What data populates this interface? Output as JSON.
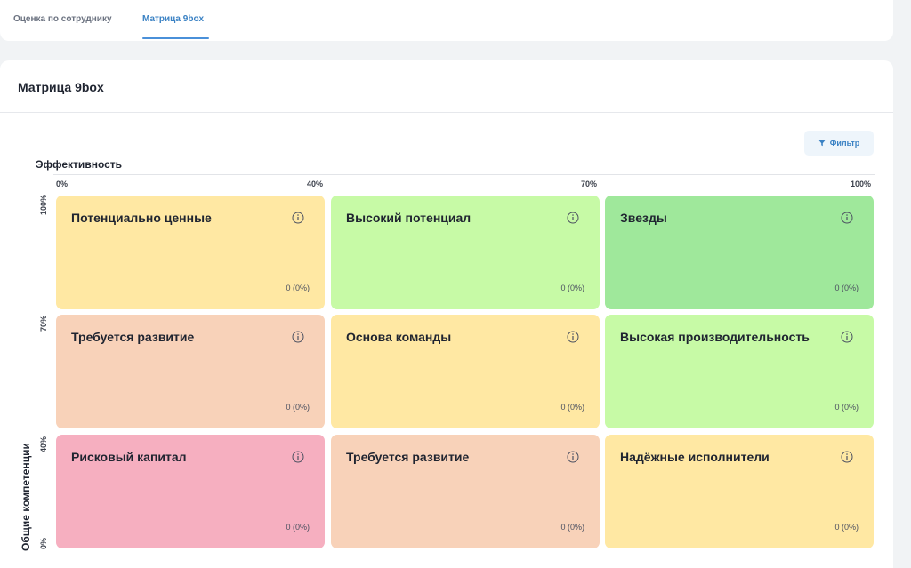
{
  "tabs": [
    {
      "label": "Оценка по сотруднику",
      "active": false
    },
    {
      "label": "Матрица 9box",
      "active": true
    }
  ],
  "page": {
    "title": "Матрица 9box"
  },
  "filter": {
    "label": "Фильтр",
    "icon": "filter-icon"
  },
  "axes": {
    "x_title": "Эффективность",
    "x_ticks": [
      "0%",
      "40%",
      "70%",
      "100%"
    ],
    "y_title": "Общие компетенции",
    "y_ticks": [
      "100%",
      "70%",
      "40%",
      "0%"
    ]
  },
  "grid": {
    "rows": [
      [
        {
          "title": "Потенциально ценные",
          "count": "0 (0%)",
          "color": "#ffe8a3"
        },
        {
          "title": "Высокий потенциал",
          "count": "0 (0%)",
          "color": "#c7faa6"
        },
        {
          "title": "Звезды",
          "count": "0 (0%)",
          "color": "#9fe89b"
        }
      ],
      [
        {
          "title": "Требуется развитие",
          "count": "0 (0%)",
          "color": "#f8d2b9"
        },
        {
          "title": "Основа команды",
          "count": "0 (0%)",
          "color": "#ffe8a3"
        },
        {
          "title": "Высокая производительность",
          "count": "0 (0%)",
          "color": "#c7faa6"
        }
      ],
      [
        {
          "title": "Рисковый капитал",
          "count": "0 (0%)",
          "color": "#f6afc0"
        },
        {
          "title": "Требуется развитие",
          "count": "0 (0%)",
          "color": "#f8d2b9"
        },
        {
          "title": "Надёжные исполнители",
          "count": "0 (0%)",
          "color": "#ffe8a3"
        }
      ]
    ]
  },
  "colors": {
    "accent": "#3b82c4",
    "info_icon": "#4b5060"
  }
}
